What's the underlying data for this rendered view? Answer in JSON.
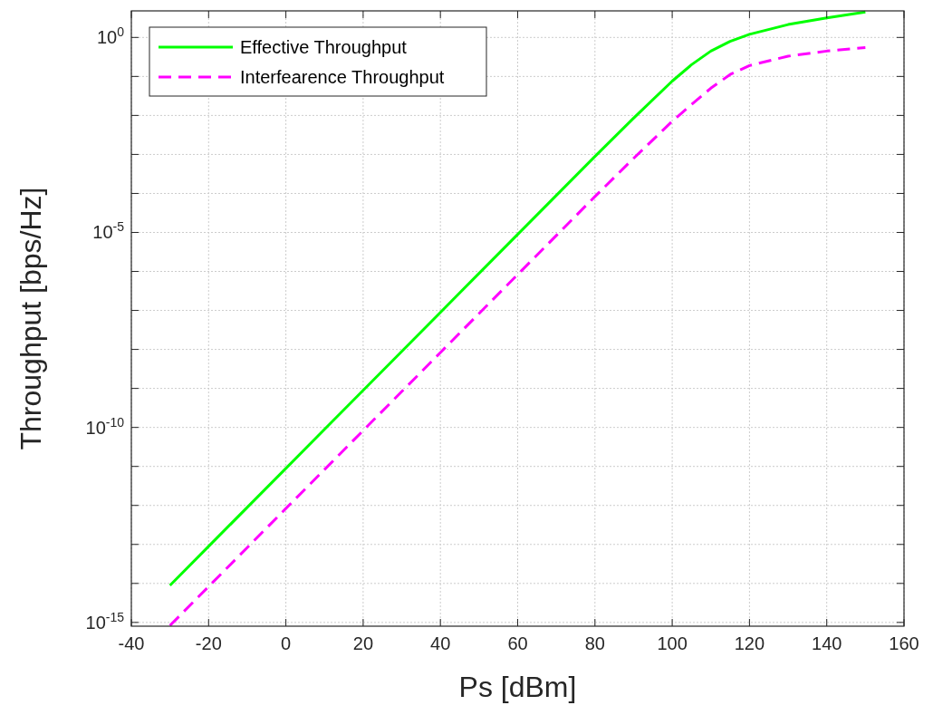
{
  "chart_data": {
    "type": "line",
    "xlabel": "Ps [dBm]",
    "ylabel": "Throughput [bps/Hz]",
    "log": "y",
    "grid": true,
    "legend": "top left",
    "x": [
      -30,
      -20,
      -10,
      0,
      10,
      20,
      30,
      40,
      50,
      60,
      70,
      80,
      90,
      100,
      105,
      110,
      115,
      120,
      130,
      140,
      150
    ],
    "xlim": [
      -40,
      160
    ],
    "xticks": [
      -40,
      -20,
      0,
      20,
      40,
      60,
      80,
      100,
      120,
      140,
      160
    ],
    "ylim": [
      8e-16,
      4.8
    ],
    "yticks": [
      {
        "value": 1e-15,
        "label": "10$^{-15}$"
      },
      {
        "value": 1e-14,
        "label": null
      },
      {
        "value": 1e-13,
        "label": null
      },
      {
        "value": 1e-12,
        "label": null
      },
      {
        "value": 1e-11,
        "label": null
      },
      {
        "value": 1e-10,
        "label": "10$^{-10}$"
      },
      {
        "value": 1e-09,
        "label": null
      },
      {
        "value": 1e-08,
        "label": null
      },
      {
        "value": 1e-07,
        "label": null
      },
      {
        "value": 1e-06,
        "label": null
      },
      {
        "value": 1e-05,
        "label": "10$^{-5}$"
      },
      {
        "value": 0.0001,
        "label": null
      },
      {
        "value": 0.001,
        "label": null
      },
      {
        "value": 0.01,
        "label": null
      },
      {
        "value": 0.1,
        "label": null
      },
      {
        "value": 1,
        "label": "10$^{0}$"
      }
    ],
    "series": [
      {
        "name": "Effective Throughput",
        "color": "#00ff00",
        "line_style": "solid",
        "values": [
          8.91e-15,
          8.91e-14,
          8.91e-13,
          8.91e-12,
          8.91e-11,
          8.91e-10,
          8.91e-09,
          8.91e-08,
          8.91e-07,
          8.91e-06,
          8.91e-05,
          0.000891,
          0.00851,
          0.0759,
          0.2,
          0.447,
          0.794,
          1.2,
          2.14,
          3.16,
          4.47
        ]
      },
      {
        "name": "Interfearence Throughput",
        "color": "#ff00ff",
        "line_style": "dashed",
        "values": [
          8.32e-16,
          8.32e-15,
          8.32e-14,
          8.32e-13,
          8.32e-12,
          8.32e-11,
          8.32e-10,
          8.32e-09,
          8.32e-08,
          8.32e-07,
          8.32e-06,
          8.32e-05,
          0.000794,
          0.00708,
          0.019,
          0.05,
          0.112,
          0.19,
          0.331,
          0.447,
          0.55
        ]
      }
    ]
  }
}
